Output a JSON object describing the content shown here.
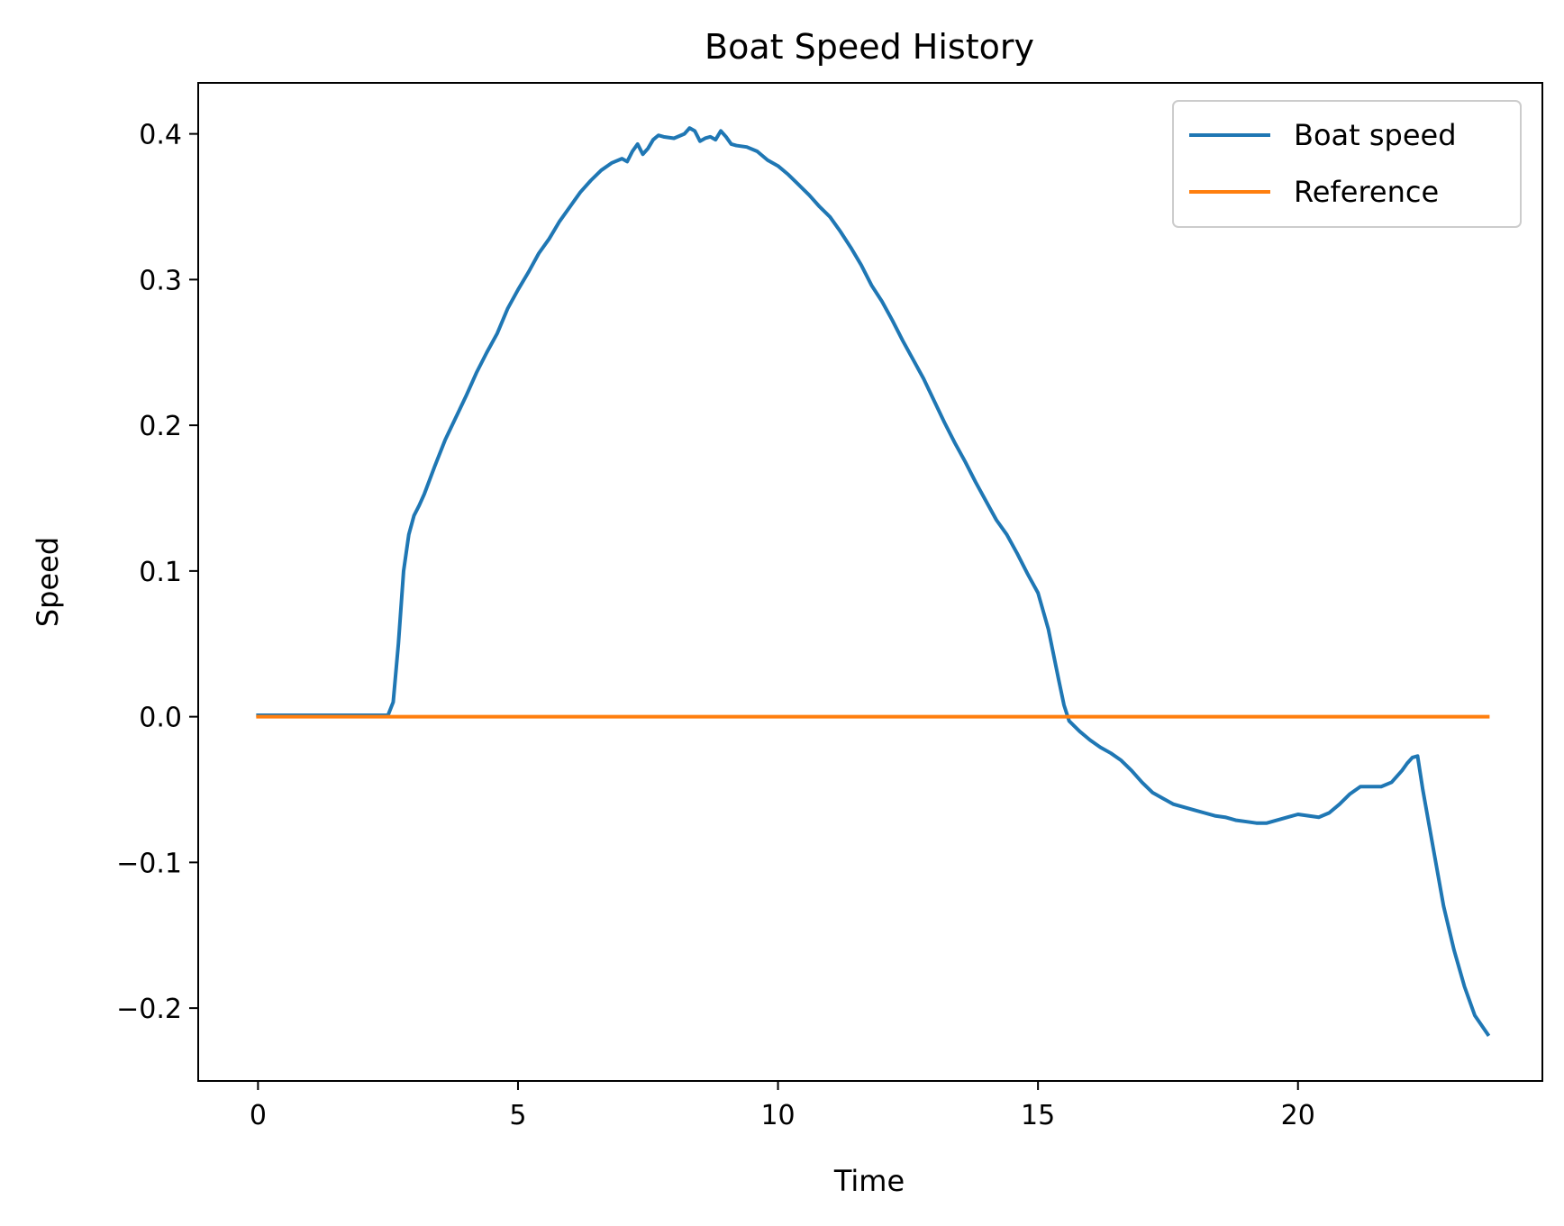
{
  "chart_data": {
    "type": "line",
    "title": "Boat Speed History",
    "xlabel": "Time",
    "ylabel": "Speed",
    "xlim": [
      -1.15,
      24.7
    ],
    "ylim": [
      -0.25,
      0.435
    ],
    "xticks": [
      0,
      5,
      10,
      15,
      20
    ],
    "xtick_labels": [
      "0",
      "5",
      "10",
      "15",
      "20"
    ],
    "yticks": [
      -0.2,
      -0.1,
      0.0,
      0.1,
      0.2,
      0.3,
      0.4
    ],
    "ytick_labels": [
      "−0.2",
      "−0.1",
      "0.0",
      "0.1",
      "0.2",
      "0.3",
      "0.4"
    ],
    "grid": false,
    "legend_position": "upper right",
    "series": [
      {
        "name": "Boat speed",
        "color": "#1f77b4",
        "x": [
          0,
          0.5,
          1,
          1.5,
          2,
          2.5,
          2.6,
          2.7,
          2.8,
          2.9,
          3.0,
          3.1,
          3.2,
          3.4,
          3.6,
          3.8,
          4.0,
          4.2,
          4.4,
          4.6,
          4.8,
          5.0,
          5.2,
          5.4,
          5.6,
          5.8,
          6.0,
          6.2,
          6.4,
          6.6,
          6.8,
          7.0,
          7.1,
          7.2,
          7.3,
          7.4,
          7.5,
          7.6,
          7.7,
          7.8,
          8.0,
          8.2,
          8.3,
          8.4,
          8.5,
          8.6,
          8.7,
          8.8,
          8.9,
          9.0,
          9.1,
          9.2,
          9.4,
          9.6,
          9.8,
          10.0,
          10.2,
          10.4,
          10.6,
          10.8,
          11.0,
          11.2,
          11.4,
          11.6,
          11.8,
          12.0,
          12.2,
          12.4,
          12.6,
          12.8,
          13.0,
          13.2,
          13.4,
          13.6,
          13.8,
          14.0,
          14.2,
          14.4,
          14.6,
          14.8,
          15.0,
          15.2,
          15.4,
          15.5,
          15.6,
          15.8,
          16.0,
          16.2,
          16.4,
          16.6,
          16.8,
          17.0,
          17.2,
          17.4,
          17.6,
          17.8,
          18.0,
          18.2,
          18.4,
          18.6,
          18.8,
          19.0,
          19.2,
          19.4,
          19.6,
          19.8,
          20.0,
          20.2,
          20.4,
          20.6,
          20.8,
          21.0,
          21.2,
          21.4,
          21.6,
          21.8,
          22.0,
          22.1,
          22.2,
          22.3,
          22.4,
          22.6,
          22.8,
          23.0,
          23.2,
          23.4,
          23.65
        ],
        "y": [
          0.001,
          0.001,
          0.001,
          0.001,
          0.001,
          0.001,
          0.01,
          0.05,
          0.1,
          0.125,
          0.138,
          0.145,
          0.153,
          0.172,
          0.19,
          0.205,
          0.22,
          0.236,
          0.25,
          0.263,
          0.28,
          0.293,
          0.305,
          0.318,
          0.328,
          0.34,
          0.35,
          0.36,
          0.368,
          0.375,
          0.38,
          0.383,
          0.381,
          0.388,
          0.393,
          0.386,
          0.39,
          0.396,
          0.399,
          0.398,
          0.397,
          0.4,
          0.404,
          0.402,
          0.395,
          0.397,
          0.398,
          0.396,
          0.402,
          0.398,
          0.393,
          0.392,
          0.391,
          0.388,
          0.382,
          0.378,
          0.372,
          0.365,
          0.358,
          0.35,
          0.343,
          0.333,
          0.322,
          0.31,
          0.296,
          0.285,
          0.272,
          0.258,
          0.245,
          0.232,
          0.217,
          0.202,
          0.188,
          0.175,
          0.161,
          0.148,
          0.135,
          0.125,
          0.112,
          0.098,
          0.085,
          0.06,
          0.025,
          0.008,
          -0.003,
          -0.01,
          -0.016,
          -0.021,
          -0.025,
          -0.03,
          -0.037,
          -0.045,
          -0.052,
          -0.056,
          -0.06,
          -0.062,
          -0.064,
          -0.066,
          -0.068,
          -0.069,
          -0.071,
          -0.072,
          -0.073,
          -0.073,
          -0.071,
          -0.069,
          -0.067,
          -0.068,
          -0.069,
          -0.066,
          -0.06,
          -0.053,
          -0.048,
          -0.048,
          -0.048,
          -0.045,
          -0.037,
          -0.032,
          -0.028,
          -0.027,
          -0.05,
          -0.09,
          -0.13,
          -0.16,
          -0.185,
          -0.205,
          -0.218
        ]
      },
      {
        "name": "Reference",
        "color": "#ff7f0e",
        "x": [
          0,
          23.65
        ],
        "y": [
          0,
          0
        ]
      }
    ]
  }
}
